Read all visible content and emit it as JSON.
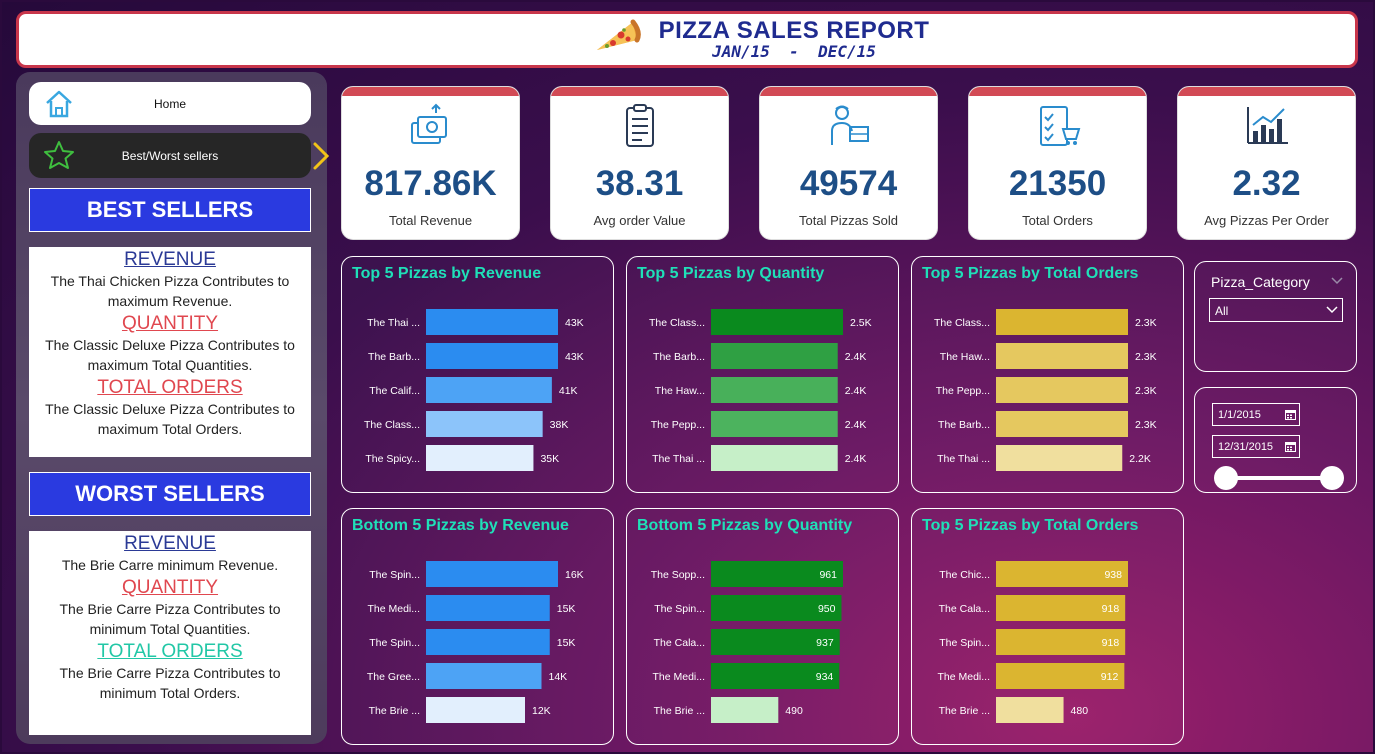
{
  "header": {
    "title": "PIZZA SALES REPORT",
    "subtitle": "JAN/15  -  DEC/15"
  },
  "nav": {
    "home_label": "Home",
    "best_worst_label": "Best/Worst sellers"
  },
  "best": {
    "heading": "BEST SELLERS",
    "revenue_key": "REVENUE",
    "revenue_text": "The Thai Chicken Pizza Contributes to maximum Revenue.",
    "quantity_key": "QUANTITY",
    "quantity_text": "The Classic Deluxe Pizza Contributes to maximum Total Quantities.",
    "orders_key": "TOTAL ORDERS",
    "orders_text": "The Classic Deluxe Pizza Contributes to maximum Total Orders."
  },
  "worst": {
    "heading": "WORST SELLERS",
    "revenue_key": "REVENUE",
    "revenue_text": "The Brie Carre minimum Revenue.",
    "quantity_key": "QUANTITY",
    "quantity_text": "The Brie Carre Pizza Contributes to minimum Total Quantities.",
    "orders_key": "TOTAL ORDERS",
    "orders_text": "The Brie Carre Pizza Contributes to minimum Total Orders."
  },
  "kpis": [
    {
      "value": "817.86K",
      "caption": "Total Revenue"
    },
    {
      "value": "38.31",
      "caption": "Avg order Value"
    },
    {
      "value": "49574",
      "caption": "Total Pizzas Sold"
    },
    {
      "value": "21350",
      "caption": "Total Orders"
    },
    {
      "value": "2.32",
      "caption": "Avg Pizzas Per Order"
    }
  ],
  "slicer_category": {
    "title": "Pizza_Category",
    "selected": "All"
  },
  "slicer_date": {
    "start": "1/1/2015",
    "end": "12/31/2015"
  },
  "colors": {
    "accent_teal": "#1fe0b8",
    "header_border": "#c8364b",
    "kpi_value": "#1d4e86"
  },
  "chart_data": [
    {
      "type": "bar",
      "title": "Top 5 Pizzas by Revenue",
      "categories": [
        "The Thai ...",
        "The Barb...",
        "The Calif...",
        "The Class...",
        "The Spicy..."
      ],
      "values": [
        43,
        43,
        41,
        38,
        35
      ],
      "labels": [
        "43K",
        "43K",
        "41K",
        "38K",
        "35K"
      ],
      "colors": [
        "#2b8cf0",
        "#2b8cf0",
        "#4da3f5",
        "#8cc4fa",
        "#e2effd"
      ],
      "max": 43,
      "label_inside": false
    },
    {
      "type": "bar",
      "title": "Top 5 Pizzas by Quantity",
      "categories": [
        "The Class...",
        "The Barb...",
        "The Haw...",
        "The Pepp...",
        "The Thai ..."
      ],
      "values": [
        2.5,
        2.4,
        2.4,
        2.4,
        2.4
      ],
      "labels": [
        "2.5K",
        "2.4K",
        "2.4K",
        "2.4K",
        "2.4K"
      ],
      "colors": [
        "#0a8a1e",
        "#2fa043",
        "#48b05a",
        "#4cb35e",
        "#c6efc8"
      ],
      "max": 2.5,
      "label_inside": false
    },
    {
      "type": "bar",
      "title": "Top 5 Pizzas by Total Orders",
      "categories": [
        "The Class...",
        "The Haw...",
        "The Pepp...",
        "The Barb...",
        "The Thai ..."
      ],
      "values": [
        2.3,
        2.3,
        2.3,
        2.3,
        2.2
      ],
      "labels": [
        "2.3K",
        "2.3K",
        "2.3K",
        "2.3K",
        "2.2K"
      ],
      "colors": [
        "#dbb530",
        "#e5c85f",
        "#e5c85f",
        "#e5c85f",
        "#f0df9e"
      ],
      "max": 2.3,
      "label_inside": false
    },
    {
      "type": "bar",
      "title": "Bottom 5 Pizzas by Revenue",
      "categories": [
        "The Spin...",
        "The Medi...",
        "The Spin...",
        "The Gree...",
        "The Brie ..."
      ],
      "values": [
        16,
        15,
        15,
        14,
        12
      ],
      "labels": [
        "16K",
        "15K",
        "15K",
        "14K",
        "12K"
      ],
      "colors": [
        "#2b8cf0",
        "#2b8cf0",
        "#2b8cf0",
        "#4da3f5",
        "#e2effd"
      ],
      "max": 16,
      "label_inside": false
    },
    {
      "type": "bar",
      "title": "Bottom 5 Pizzas by Quantity",
      "categories": [
        "The Sopp...",
        "The Spin...",
        "The Cala...",
        "The Medi...",
        "The Brie ..."
      ],
      "values": [
        961,
        950,
        937,
        934,
        490
      ],
      "labels": [
        "961",
        "950",
        "937",
        "934",
        "490"
      ],
      "colors": [
        "#0a8a1e",
        "#0a8a1e",
        "#0a8a1e",
        "#0a8a1e",
        "#c6efc8"
      ],
      "max": 961,
      "label_inside": true
    },
    {
      "type": "bar",
      "title": "Top 5 Pizzas by Total Orders",
      "categories": [
        "The Chic...",
        "The Cala...",
        "The Spin...",
        "The Medi...",
        "The Brie ..."
      ],
      "values": [
        938,
        918,
        918,
        912,
        480
      ],
      "labels": [
        "938",
        "918",
        "918",
        "912",
        "480"
      ],
      "colors": [
        "#dbb530",
        "#dbb530",
        "#dbb530",
        "#dbb530",
        "#f0df9e"
      ],
      "max": 938,
      "label_inside": true
    }
  ]
}
